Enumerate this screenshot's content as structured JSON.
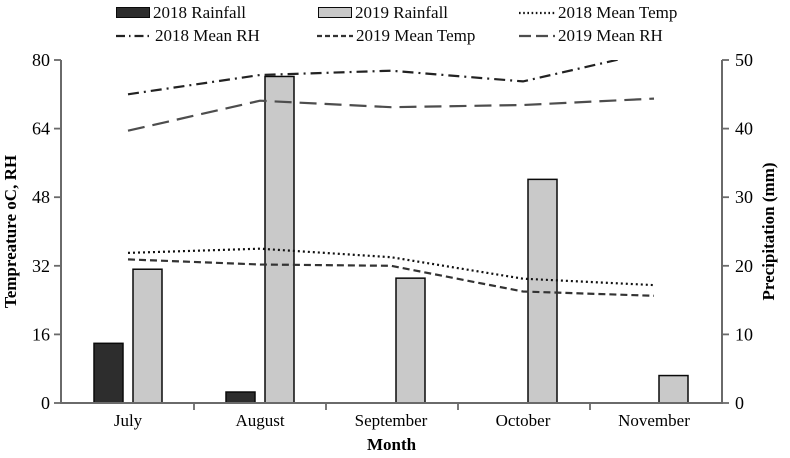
{
  "legend": {
    "rows": [
      [
        {
          "label": "2018 Rainfall",
          "swatch": "bar-dark"
        },
        {
          "label": "2019 Rainfall",
          "swatch": "bar-light"
        },
        {
          "label": "2018 Mean Temp",
          "swatch": "dotted"
        }
      ],
      [
        {
          "label": "2018 Mean RH",
          "swatch": "dashdot"
        },
        {
          "label": "2019 Mean Temp",
          "swatch": "dash"
        },
        {
          "label": "2019 Mean RH",
          "swatch": "longdash"
        }
      ]
    ]
  },
  "chart_data": {
    "type": "bar",
    "subtype": "combo-bar-line-dual-axis",
    "categories": [
      "July",
      "August",
      "September",
      "October",
      "November"
    ],
    "x_axis": {
      "label": "Month"
    },
    "left_axis": {
      "label": "Tempreature oC,  RH",
      "min": 0,
      "max": 80,
      "ticks": [
        0,
        16,
        32,
        48,
        64,
        80
      ]
    },
    "right_axis": {
      "label": "Precipitation (mm)",
      "min": 0,
      "max": 50,
      "ticks": [
        0,
        10,
        20,
        30,
        40,
        50
      ]
    },
    "grid": false,
    "legend_position": "top",
    "bar_series": [
      {
        "name": "2018 Rainfall",
        "axis": "right",
        "color": "#2d2d2d",
        "values": [
          8.7,
          1.6,
          0,
          0,
          0
        ]
      },
      {
        "name": "2019 Rainfall",
        "axis": "right",
        "color": "#c9c9c9",
        "values": [
          19.5,
          47.6,
          18.2,
          32.6,
          4
        ]
      }
    ],
    "line_series": [
      {
        "name": "2018 Mean Temp",
        "axis": "left",
        "style": "dotted",
        "color": "#111111",
        "values": [
          35,
          36,
          34,
          29,
          27.5
        ]
      },
      {
        "name": "2019 Mean Temp",
        "axis": "left",
        "style": "dash",
        "color": "#333333",
        "values": [
          33.5,
          32.3,
          32,
          26,
          25
        ]
      },
      {
        "name": "2018 Mean RH",
        "axis": "left",
        "style": "dashdot",
        "color": "#222222",
        "values": [
          72,
          76.5,
          77.5,
          75,
          82
        ]
      },
      {
        "name": "2019 Mean RH",
        "axis": "left",
        "style": "longdash",
        "color": "#4d4d4d",
        "values": [
          63.5,
          70.5,
          69,
          69.5,
          71
        ]
      }
    ],
    "axis_color": "#6a6a6a"
  }
}
